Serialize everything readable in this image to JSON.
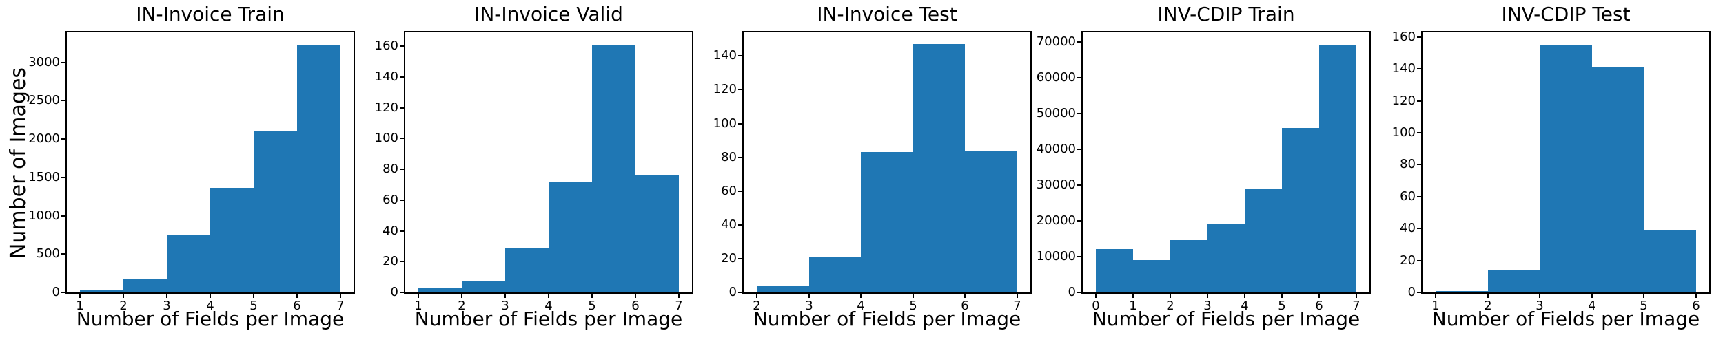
{
  "figure": {
    "ylabel": "Number of Images",
    "bar_color": "#1f77b4",
    "text_color": "#000000",
    "background": "#ffffff"
  },
  "chart_data": [
    {
      "type": "bar",
      "subtype": "histogram",
      "title": "IN-Invoice Train",
      "xlabel": "Number of Fields per Image",
      "ylabel": "Number of Images",
      "bin_edges": [
        1,
        2,
        3,
        4,
        5,
        6,
        7
      ],
      "values": [
        25,
        170,
        750,
        1360,
        2110,
        3230
      ],
      "xticks": [
        1,
        2,
        3,
        4,
        5,
        6,
        7
      ],
      "yticks": [
        0,
        500,
        1000,
        1500,
        2000,
        2500,
        3000
      ],
      "xlim": [
        0.7,
        7.3
      ],
      "ylim": [
        0,
        3392
      ],
      "grid": false,
      "legend": null
    },
    {
      "type": "bar",
      "subtype": "histogram",
      "title": "IN-Invoice Valid",
      "xlabel": "Number of Fields per Image",
      "ylabel": "Number of Images",
      "bin_edges": [
        1,
        2,
        3,
        4,
        5,
        6,
        7
      ],
      "values": [
        3,
        7,
        29,
        72,
        161,
        76
      ],
      "xticks": [
        1,
        2,
        3,
        4,
        5,
        6,
        7
      ],
      "yticks": [
        0,
        20,
        40,
        60,
        80,
        100,
        120,
        140,
        160
      ],
      "xlim": [
        0.7,
        7.3
      ],
      "ylim": [
        0,
        169
      ],
      "grid": false,
      "legend": null
    },
    {
      "type": "bar",
      "subtype": "histogram",
      "title": "IN-Invoice Test",
      "xlabel": "Number of Fields per Image",
      "ylabel": "Number of Images",
      "bin_edges": [
        2,
        3,
        4,
        5,
        6,
        7
      ],
      "values": [
        4,
        21,
        83,
        147,
        84
      ],
      "xticks": [
        2,
        3,
        4,
        5,
        6,
        7
      ],
      "yticks": [
        0,
        20,
        40,
        60,
        80,
        100,
        120,
        140
      ],
      "xlim": [
        1.75,
        7.25
      ],
      "ylim": [
        0,
        154
      ],
      "grid": false,
      "legend": null
    },
    {
      "type": "bar",
      "subtype": "histogram",
      "title": "INV-CDIP Train",
      "xlabel": "Number of Fields per Image",
      "ylabel": "Number of Images",
      "bin_edges": [
        0,
        1,
        2,
        3,
        4,
        5,
        6,
        7
      ],
      "values": [
        12200,
        9000,
        14700,
        19200,
        29100,
        46000,
        69200
      ],
      "xticks": [
        0,
        1,
        2,
        3,
        4,
        5,
        6,
        7
      ],
      "yticks": [
        0,
        10000,
        20000,
        30000,
        40000,
        50000,
        60000,
        70000
      ],
      "xlim": [
        -0.35,
        7.35
      ],
      "ylim": [
        0,
        72660
      ],
      "grid": false,
      "legend": null
    },
    {
      "type": "bar",
      "subtype": "histogram",
      "title": "INV-CDIP Test",
      "xlabel": "Number of Fields per Image",
      "ylabel": "Number of Images",
      "bin_edges": [
        1,
        2,
        3,
        4,
        5,
        6
      ],
      "values": [
        1,
        14,
        155,
        141,
        39
      ],
      "xticks": [
        1,
        2,
        3,
        4,
        5,
        6
      ],
      "yticks": [
        0,
        20,
        40,
        60,
        80,
        100,
        120,
        140,
        160
      ],
      "xlim": [
        0.75,
        6.25
      ],
      "ylim": [
        0,
        163
      ],
      "grid": false,
      "legend": null
    }
  ]
}
